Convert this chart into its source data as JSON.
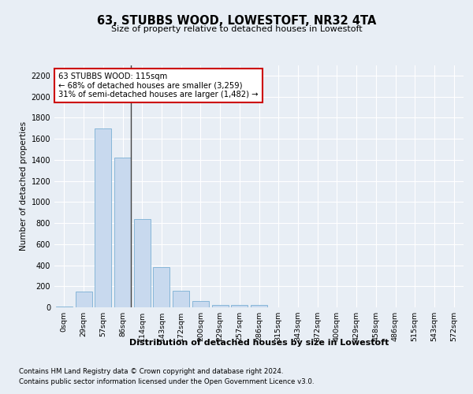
{
  "title": "63, STUBBS WOOD, LOWESTOFT, NR32 4TA",
  "subtitle": "Size of property relative to detached houses in Lowestoft",
  "xlabel": "Distribution of detached houses by size in Lowestoft",
  "ylabel": "Number of detached properties",
  "footnote1": "Contains HM Land Registry data © Crown copyright and database right 2024.",
  "footnote2": "Contains public sector information licensed under the Open Government Licence v3.0.",
  "bar_labels": [
    "0sqm",
    "29sqm",
    "57sqm",
    "86sqm",
    "114sqm",
    "143sqm",
    "172sqm",
    "200sqm",
    "229sqm",
    "257sqm",
    "286sqm",
    "315sqm",
    "343sqm",
    "372sqm",
    "400sqm",
    "429sqm",
    "458sqm",
    "486sqm",
    "515sqm",
    "543sqm",
    "572sqm"
  ],
  "bar_values": [
    10,
    150,
    1700,
    1420,
    840,
    380,
    160,
    60,
    25,
    22,
    22,
    0,
    0,
    0,
    0,
    0,
    0,
    0,
    0,
    0,
    0
  ],
  "bar_color": "#c8d9ee",
  "bar_edge_color": "#7aafd4",
  "highlight_bar_index": 3,
  "highlight_line_color": "#444444",
  "annotation_title": "63 STUBBS WOOD: 115sqm",
  "annotation_line1": "← 68% of detached houses are smaller (3,259)",
  "annotation_line2": "31% of semi-detached houses are larger (1,482) →",
  "annotation_box_facecolor": "#ffffff",
  "annotation_box_edgecolor": "#cc0000",
  "ylim": [
    0,
    2300
  ],
  "yticks": [
    0,
    200,
    400,
    600,
    800,
    1000,
    1200,
    1400,
    1600,
    1800,
    2000,
    2200
  ],
  "bg_color": "#e8eef5",
  "plot_bg_color": "#e8eef5",
  "grid_color": "#ffffff"
}
